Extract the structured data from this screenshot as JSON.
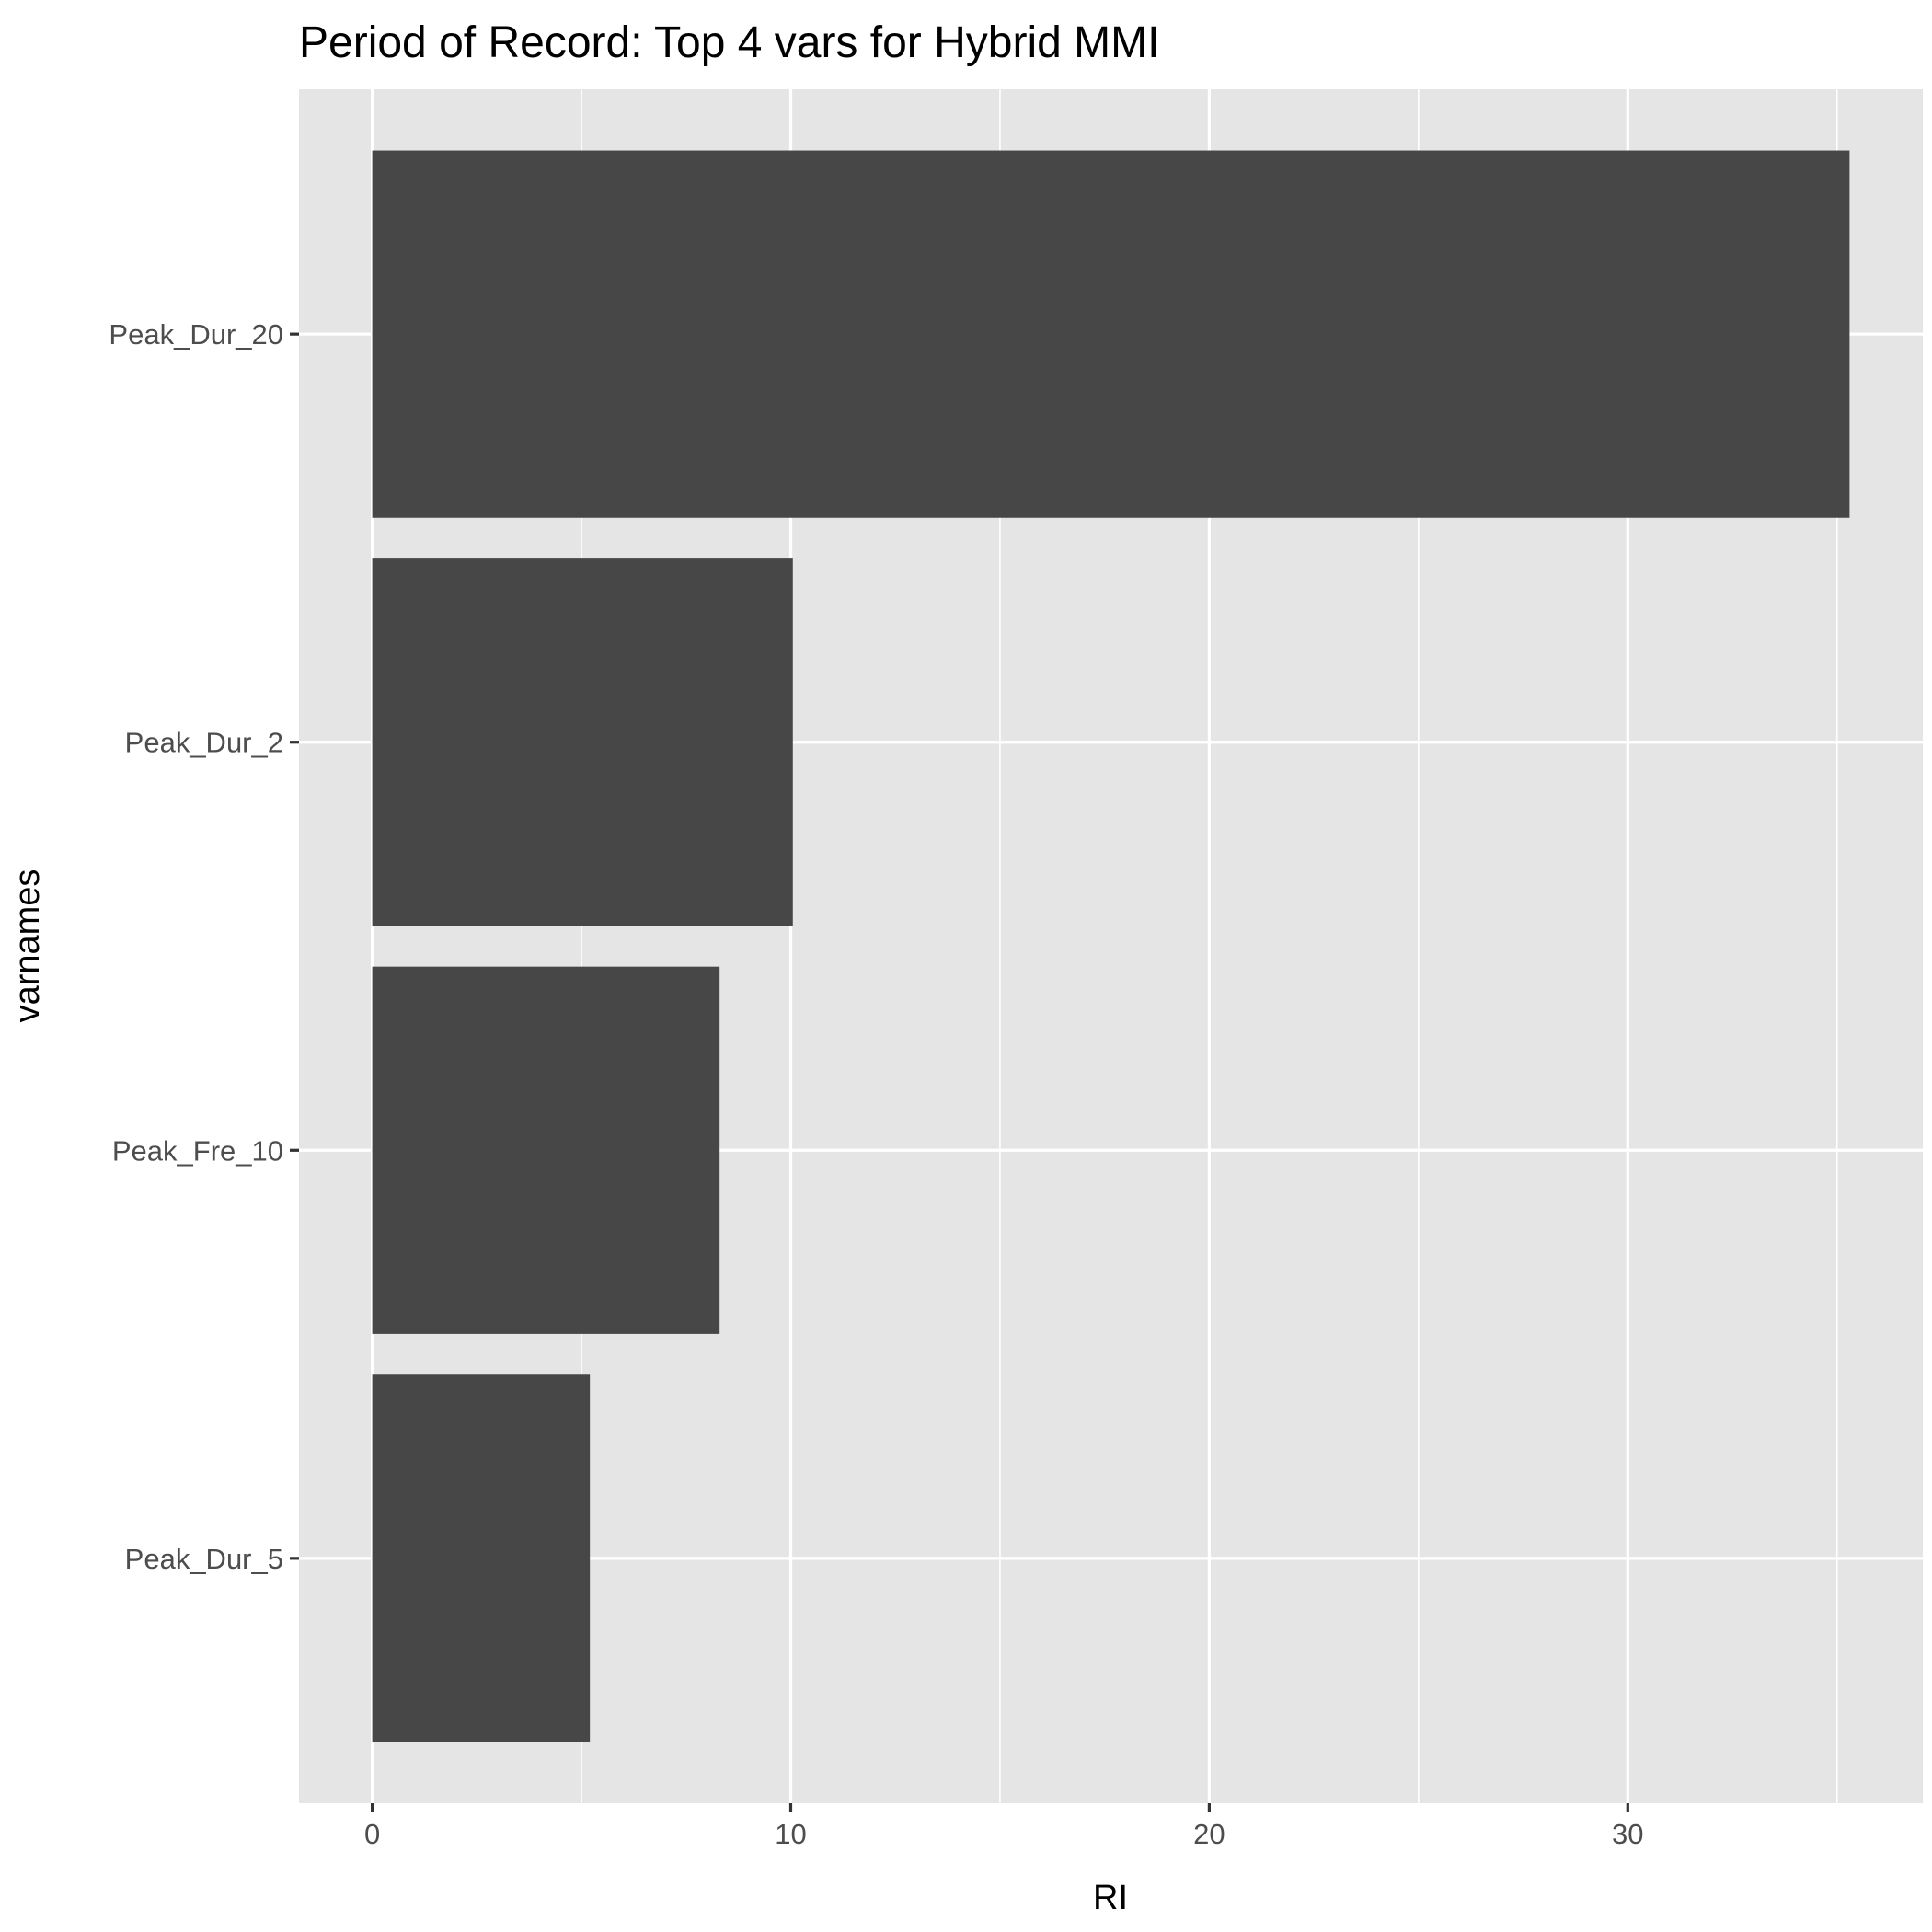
{
  "chart_data": {
    "type": "bar",
    "orientation": "horizontal",
    "title": "Period of Record: Top 4 vars for Hybrid MMI",
    "xlabel": "RI",
    "ylabel": "varnames",
    "categories": [
      "Peak_Dur_20",
      "Peak_Dur_2",
      "Peak_Fre_10",
      "Peak_Dur_5"
    ],
    "values": [
      35.3,
      10.05,
      8.3,
      5.2
    ],
    "xlim": [
      -1.75,
      37.05
    ],
    "x_ticks": [
      0,
      10,
      20,
      30
    ],
    "x_tick_labels": [
      "0",
      "10",
      "20",
      "30"
    ],
    "grid": true,
    "colors": {
      "bar": "#474747",
      "panel": "#e5e5e5",
      "grid": "#ffffff",
      "tick": "#333333"
    }
  }
}
